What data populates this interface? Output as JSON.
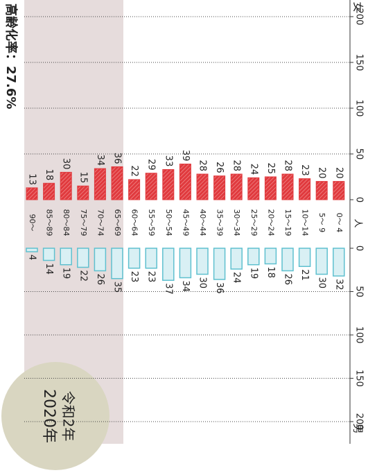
{
  "chart_data": {
    "type": "bar",
    "title": "高齢化率：27.6%",
    "annotations": [
      "2020年",
      "令和2年"
    ],
    "unit_label": "人",
    "categories": [
      "90～",
      "85～89",
      "80～84",
      "75～79",
      "70～74",
      "65～69",
      "60～64",
      "55～59",
      "50～54",
      "45～49",
      "40～44",
      "35～39",
      "30～34",
      "25～29",
      "20～24",
      "15～19",
      "10～14",
      "5～ 9",
      "0～ 4"
    ],
    "series": [
      {
        "name": "女",
        "color": "#e03a3e",
        "values": [
          13,
          18,
          30,
          15,
          34,
          36,
          22,
          29,
          33,
          39,
          28,
          26,
          28,
          24,
          25,
          28,
          23,
          20,
          20
        ]
      },
      {
        "name": "男",
        "color": "#5fc0cf",
        "values": [
          4,
          14,
          19,
          22,
          26,
          35,
          23,
          23,
          37,
          34,
          30,
          36,
          24,
          19,
          18,
          26,
          21,
          30,
          32
        ]
      }
    ],
    "xlim": [
      0,
      200
    ],
    "xticks": [
      0,
      50,
      100,
      150,
      200
    ],
    "grid": true
  }
}
